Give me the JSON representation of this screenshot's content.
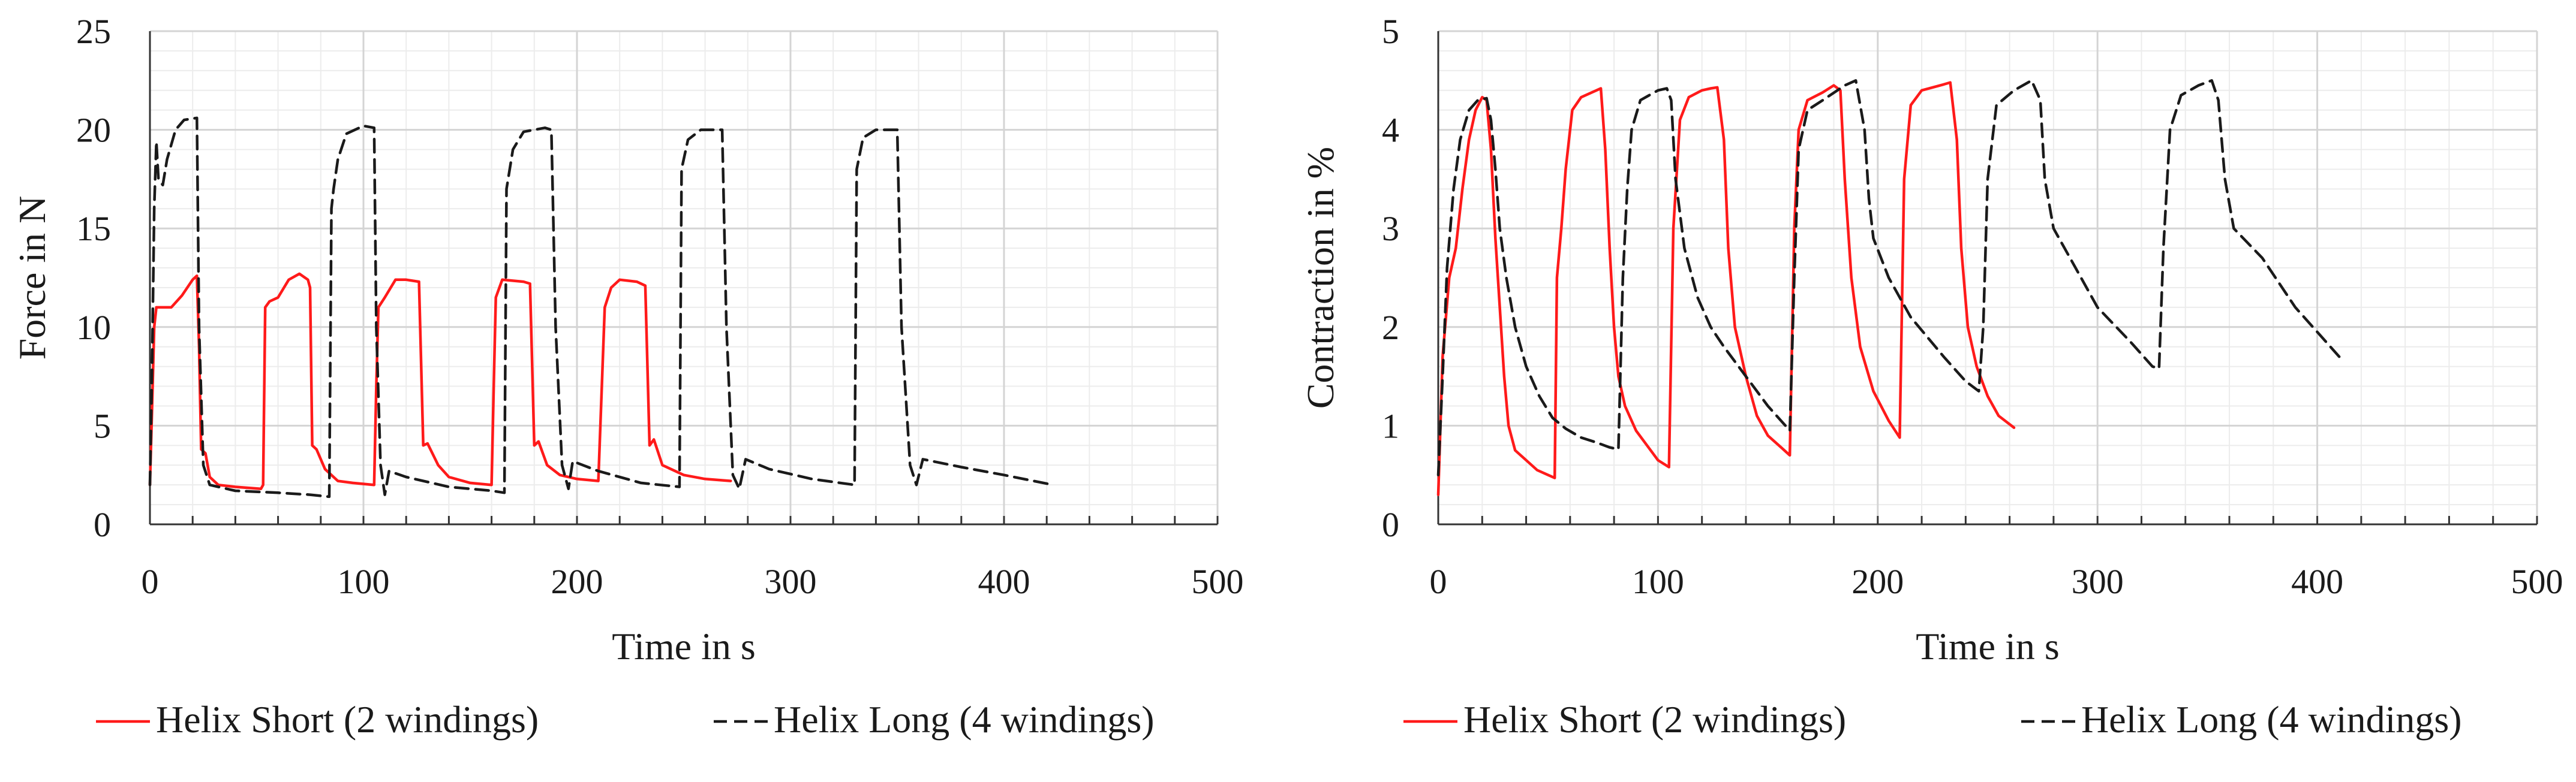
{
  "chart_data": [
    {
      "type": "line",
      "title": "",
      "xlabel": "Time in s",
      "ylabel": "Force in N",
      "xlim": [
        0,
        500
      ],
      "ylim": [
        0,
        25
      ],
      "xticks": [
        "0",
        "100",
        "200",
        "300",
        "400",
        "500"
      ],
      "yticks": [
        "0",
        "5",
        "10",
        "15",
        "20",
        "25"
      ],
      "grid": true,
      "legend_position": "bottom",
      "series": [
        {
          "name": "Helix Short (2 windings)",
          "color": "#ff1a1a",
          "dash": "solid",
          "points": [
            [
              0,
              2
            ],
            [
              1,
              6
            ],
            [
              2,
              10
            ],
            [
              3,
              11
            ],
            [
              5,
              11
            ],
            [
              10,
              11
            ],
            [
              15,
              11.6
            ],
            [
              20,
              12.4
            ],
            [
              22,
              12.6
            ],
            [
              23,
              9
            ],
            [
              24,
              3.8
            ],
            [
              26,
              3.6
            ],
            [
              28,
              2.4
            ],
            [
              32,
              2
            ],
            [
              40,
              1.9
            ],
            [
              52,
              1.8
            ],
            [
              53,
              2
            ],
            [
              54,
              11
            ],
            [
              56,
              11.3
            ],
            [
              60,
              11.5
            ],
            [
              65,
              12.4
            ],
            [
              70,
              12.7
            ],
            [
              74,
              12.4
            ],
            [
              75,
              12
            ],
            [
              76,
              4
            ],
            [
              78,
              3.8
            ],
            [
              82,
              2.8
            ],
            [
              88,
              2.2
            ],
            [
              95,
              2.1
            ],
            [
              105,
              2
            ],
            [
              106,
              7
            ],
            [
              107,
              11
            ],
            [
              110,
              11.5
            ],
            [
              115,
              12.4
            ],
            [
              120,
              12.4
            ],
            [
              126,
              12.3
            ],
            [
              128,
              4
            ],
            [
              130,
              4.1
            ],
            [
              135,
              3
            ],
            [
              140,
              2.4
            ],
            [
              150,
              2.1
            ],
            [
              160,
              2
            ],
            [
              161,
              7
            ],
            [
              162,
              11.5
            ],
            [
              165,
              12.4
            ],
            [
              175,
              12.3
            ],
            [
              178,
              12.2
            ],
            [
              180,
              4
            ],
            [
              182,
              4.2
            ],
            [
              186,
              3
            ],
            [
              192,
              2.5
            ],
            [
              200,
              2.3
            ],
            [
              210,
              2.2
            ],
            [
              213,
              11
            ],
            [
              216,
              12
            ],
            [
              220,
              12.4
            ],
            [
              228,
              12.3
            ],
            [
              232,
              12.1
            ],
            [
              234,
              4
            ],
            [
              236,
              4.3
            ],
            [
              240,
              3
            ],
            [
              250,
              2.5
            ],
            [
              260,
              2.3
            ],
            [
              272,
              2.2
            ]
          ]
        },
        {
          "name": "Helix Long (4 windings)",
          "color": "#1a1a1a",
          "dash": "dashed",
          "points": [
            [
              0,
              2
            ],
            [
              1,
              8
            ],
            [
              2,
              16
            ],
            [
              3,
              19.4
            ],
            [
              4,
              17.5
            ],
            [
              6,
              17.2
            ],
            [
              8,
              18.5
            ],
            [
              12,
              20
            ],
            [
              16,
              20.5
            ],
            [
              22,
              20.6
            ],
            [
              23,
              10
            ],
            [
              25,
              3
            ],
            [
              28,
              2
            ],
            [
              40,
              1.7
            ],
            [
              60,
              1.6
            ],
            [
              75,
              1.5
            ],
            [
              84,
              1.4
            ],
            [
              85,
              16
            ],
            [
              86,
              17
            ],
            [
              88,
              18.5
            ],
            [
              92,
              19.8
            ],
            [
              100,
              20.2
            ],
            [
              105,
              20.1
            ],
            [
              106,
              10
            ],
            [
              108,
              3
            ],
            [
              110,
              1.5
            ],
            [
              112,
              2.7
            ],
            [
              120,
              2.4
            ],
            [
              140,
              1.9
            ],
            [
              160,
              1.7
            ],
            [
              166,
              1.6
            ],
            [
              167,
              17
            ],
            [
              170,
              19
            ],
            [
              175,
              19.9
            ],
            [
              185,
              20.1
            ],
            [
              188,
              20
            ],
            [
              190,
              10
            ],
            [
              193,
              3
            ],
            [
              196,
              1.8
            ],
            [
              198,
              3.2
            ],
            [
              210,
              2.7
            ],
            [
              230,
              2.1
            ],
            [
              248,
              1.9
            ],
            [
              249,
              18
            ],
            [
              252,
              19.5
            ],
            [
              258,
              20
            ],
            [
              268,
              20
            ],
            [
              270,
              10
            ],
            [
              273,
              2.5
            ],
            [
              276,
              1.8
            ],
            [
              279,
              3.3
            ],
            [
              290,
              2.8
            ],
            [
              310,
              2.3
            ],
            [
              330,
              2
            ],
            [
              331,
              18
            ],
            [
              334,
              19.6
            ],
            [
              340,
              20
            ],
            [
              350,
              20
            ],
            [
              352,
              10
            ],
            [
              356,
              3
            ],
            [
              359,
              2
            ],
            [
              362,
              3.3
            ],
            [
              380,
              2.9
            ],
            [
              400,
              2.5
            ],
            [
              423,
              2
            ]
          ]
        }
      ]
    },
    {
      "type": "line",
      "title": "",
      "xlabel": "Time in s",
      "ylabel": "Contraction in %",
      "xlim": [
        0,
        500
      ],
      "ylim": [
        0,
        5
      ],
      "xticks": [
        "0",
        "100",
        "200",
        "300",
        "400",
        "500"
      ],
      "yticks": [
        "0",
        "1",
        "2",
        "3",
        "4",
        "5"
      ],
      "grid": true,
      "legend_position": "bottom",
      "series": [
        {
          "name": "Helix Short (2 windings)",
          "color": "#ff1a1a",
          "dash": "solid",
          "points": [
            [
              0,
              0.3
            ],
            [
              2,
              1.7
            ],
            [
              5,
              2.5
            ],
            [
              8,
              2.8
            ],
            [
              11,
              3.4
            ],
            [
              14,
              3.9
            ],
            [
              17,
              4.2
            ],
            [
              20,
              4.33
            ],
            [
              22,
              4.3
            ],
            [
              24,
              3.8
            ],
            [
              26,
              2.9
            ],
            [
              28,
              2.2
            ],
            [
              30,
              1.5
            ],
            [
              32,
              1
            ],
            [
              35,
              0.75
            ],
            [
              40,
              0.65
            ],
            [
              45,
              0.55
            ],
            [
              50,
              0.5
            ],
            [
              53,
              0.47
            ],
            [
              54,
              2.5
            ],
            [
              56,
              3
            ],
            [
              58,
              3.6
            ],
            [
              61,
              4.2
            ],
            [
              65,
              4.33
            ],
            [
              70,
              4.38
            ],
            [
              74,
              4.42
            ],
            [
              76,
              3.8
            ],
            [
              78,
              2.8
            ],
            [
              80,
              2
            ],
            [
              82,
              1.5
            ],
            [
              85,
              1.2
            ],
            [
              90,
              0.95
            ],
            [
              95,
              0.8
            ],
            [
              100,
              0.65
            ],
            [
              105,
              0.58
            ],
            [
              107,
              3
            ],
            [
              110,
              4.1
            ],
            [
              114,
              4.33
            ],
            [
              120,
              4.4
            ],
            [
              124,
              4.42
            ],
            [
              127,
              4.43
            ],
            [
              130,
              3.9
            ],
            [
              132,
              2.8
            ],
            [
              135,
              2
            ],
            [
              140,
              1.5
            ],
            [
              145,
              1.1
            ],
            [
              150,
              0.9
            ],
            [
              156,
              0.78
            ],
            [
              160,
              0.7
            ],
            [
              162,
              3
            ],
            [
              164,
              4
            ],
            [
              168,
              4.3
            ],
            [
              175,
              4.38
            ],
            [
              180,
              4.45
            ],
            [
              183,
              4.4
            ],
            [
              185,
              3.5
            ],
            [
              188,
              2.5
            ],
            [
              192,
              1.8
            ],
            [
              198,
              1.35
            ],
            [
              205,
              1.05
            ],
            [
              210,
              0.88
            ],
            [
              212,
              3.5
            ],
            [
              215,
              4.25
            ],
            [
              220,
              4.4
            ],
            [
              230,
              4.46
            ],
            [
              233,
              4.48
            ],
            [
              236,
              3.9
            ],
            [
              238,
              2.8
            ],
            [
              241,
              2
            ],
            [
              245,
              1.6
            ],
            [
              250,
              1.3
            ],
            [
              255,
              1.1
            ],
            [
              262,
              0.98
            ]
          ]
        },
        {
          "name": "Helix Long (4 windings)",
          "color": "#1a1a1a",
          "dash": "dashed",
          "points": [
            [
              0,
              0.5
            ],
            [
              2,
              1.5
            ],
            [
              4,
              2.6
            ],
            [
              7,
              3.4
            ],
            [
              10,
              3.9
            ],
            [
              14,
              4.2
            ],
            [
              18,
              4.3
            ],
            [
              22,
              4.32
            ],
            [
              24,
              4.1
            ],
            [
              26,
              3.6
            ],
            [
              28,
              3
            ],
            [
              31,
              2.5
            ],
            [
              35,
              2
            ],
            [
              40,
              1.6
            ],
            [
              46,
              1.3
            ],
            [
              52,
              1.08
            ],
            [
              58,
              0.97
            ],
            [
              65,
              0.88
            ],
            [
              72,
              0.83
            ],
            [
              78,
              0.78
            ],
            [
              82,
              0.76
            ],
            [
              84,
              2.5
            ],
            [
              86,
              3.4
            ],
            [
              88,
              4
            ],
            [
              92,
              4.3
            ],
            [
              96,
              4.35
            ],
            [
              100,
              4.4
            ],
            [
              104,
              4.42
            ],
            [
              106,
              4.3
            ],
            [
              108,
              3.5
            ],
            [
              112,
              2.8
            ],
            [
              118,
              2.3
            ],
            [
              124,
              2
            ],
            [
              130,
              1.8
            ],
            [
              140,
              1.5
            ],
            [
              150,
              1.2
            ],
            [
              158,
              1
            ],
            [
              160,
              0.95
            ],
            [
              162,
              2.5
            ],
            [
              164,
              3.8
            ],
            [
              168,
              4.2
            ],
            [
              175,
              4.3
            ],
            [
              185,
              4.45
            ],
            [
              190,
              4.5
            ],
            [
              194,
              4
            ],
            [
              196,
              3.3
            ],
            [
              198,
              2.9
            ],
            [
              205,
              2.5
            ],
            [
              215,
              2.1
            ],
            [
              230,
              1.7
            ],
            [
              240,
              1.45
            ],
            [
              246,
              1.35
            ],
            [
              248,
              2
            ],
            [
              250,
              3.5
            ],
            [
              254,
              4.25
            ],
            [
              262,
              4.4
            ],
            [
              270,
              4.5
            ],
            [
              274,
              4.3
            ],
            [
              276,
              3.5
            ],
            [
              280,
              3
            ],
            [
              290,
              2.6
            ],
            [
              300,
              2.2
            ],
            [
              315,
              1.85
            ],
            [
              325,
              1.6
            ],
            [
              328,
              1.58
            ],
            [
              330,
              2.8
            ],
            [
              333,
              4
            ],
            [
              338,
              4.35
            ],
            [
              346,
              4.45
            ],
            [
              352,
              4.5
            ],
            [
              355,
              4.3
            ],
            [
              358,
              3.5
            ],
            [
              362,
              3
            ],
            [
              375,
              2.7
            ],
            [
              390,
              2.2
            ],
            [
              400,
              1.95
            ],
            [
              410,
              1.7
            ]
          ]
        }
      ]
    }
  ]
}
